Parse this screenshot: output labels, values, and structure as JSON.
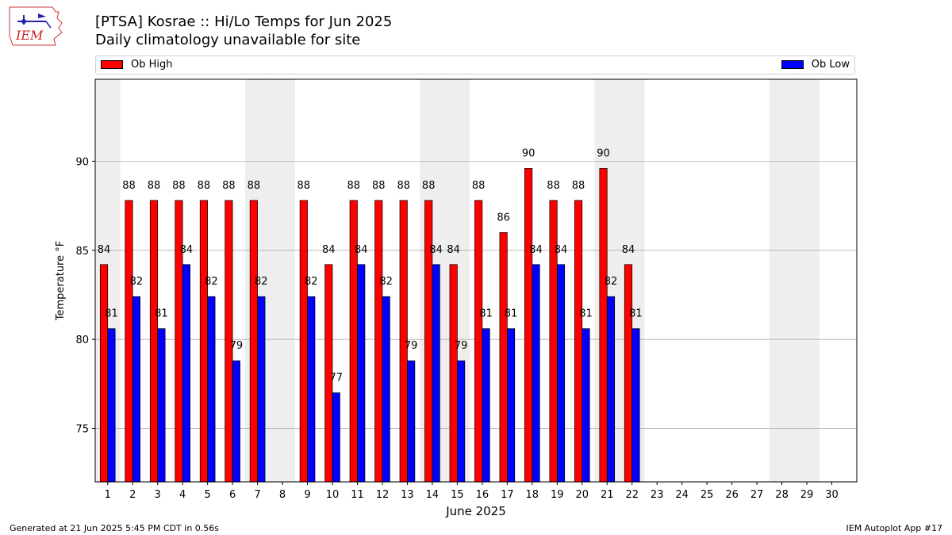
{
  "header": {
    "title": "[PTSA] Kosrae :: Hi/Lo Temps for Jun 2025",
    "subtitle": "Daily climatology unavailable for site"
  },
  "logo": {
    "text": "IEM"
  },
  "footer": {
    "left": "Generated at 21 Jun 2025 5:45 PM CDT in 0.56s",
    "right": "IEM Autoplot App #17"
  },
  "colors": {
    "high": "#ff0000",
    "low": "#0000ff",
    "weekend": "#eeeeee",
    "grid": "#b0b0b0"
  },
  "chart_data": {
    "type": "bar",
    "title": "[PTSA] Kosrae :: Hi/Lo Temps for Jun 2025",
    "subtitle": "Daily climatology unavailable for site",
    "xlabel": "June 2025",
    "ylabel": "Temperature °F",
    "ylim": [
      72,
      94.6
    ],
    "yticks": [
      75,
      80,
      85,
      90
    ],
    "grid": true,
    "legend_placement": "top",
    "categories": [
      "1",
      "2",
      "3",
      "4",
      "5",
      "6",
      "7",
      "8",
      "9",
      "10",
      "11",
      "12",
      "13",
      "14",
      "15",
      "16",
      "17",
      "18",
      "19",
      "20",
      "21",
      "22",
      "23",
      "24",
      "25",
      "26",
      "27",
      "28",
      "29",
      "30"
    ],
    "weekend_days": [
      1,
      7,
      8,
      14,
      15,
      21,
      22,
      28,
      29
    ],
    "series": [
      {
        "name": "Ob High",
        "values": [
          84.2,
          87.8,
          87.8,
          87.8,
          87.8,
          87.8,
          87.8,
          null,
          87.8,
          84.2,
          87.8,
          87.8,
          87.8,
          87.8,
          84.2,
          87.8,
          86.0,
          89.6,
          87.8,
          87.8,
          89.6,
          84.2,
          null,
          null,
          null,
          null,
          null,
          null,
          null,
          null
        ],
        "labels": [
          "84",
          "88",
          "88",
          "88",
          "88",
          "88",
          "88",
          "",
          "88",
          "84",
          "88",
          "88",
          "88",
          "88",
          "84",
          "88",
          "86",
          "90",
          "88",
          "88",
          "90",
          "84",
          "",
          "",
          "",
          "",
          "",
          "",
          "",
          ""
        ]
      },
      {
        "name": "Ob Low",
        "values": [
          80.6,
          82.4,
          80.6,
          84.2,
          82.4,
          78.8,
          82.4,
          null,
          82.4,
          77.0,
          84.2,
          82.4,
          78.8,
          84.2,
          78.8,
          80.6,
          80.6,
          84.2,
          84.2,
          80.6,
          82.4,
          80.6,
          null,
          null,
          null,
          null,
          null,
          null,
          null,
          null
        ],
        "labels": [
          "81",
          "82",
          "81",
          "84",
          "82",
          "79",
          "82",
          "",
          "82",
          "77",
          "84",
          "82",
          "79",
          "84",
          "79",
          "81",
          "81",
          "84",
          "84",
          "81",
          "82",
          "81",
          "",
          "",
          "",
          "",
          "",
          "",
          "",
          ""
        ]
      }
    ]
  }
}
